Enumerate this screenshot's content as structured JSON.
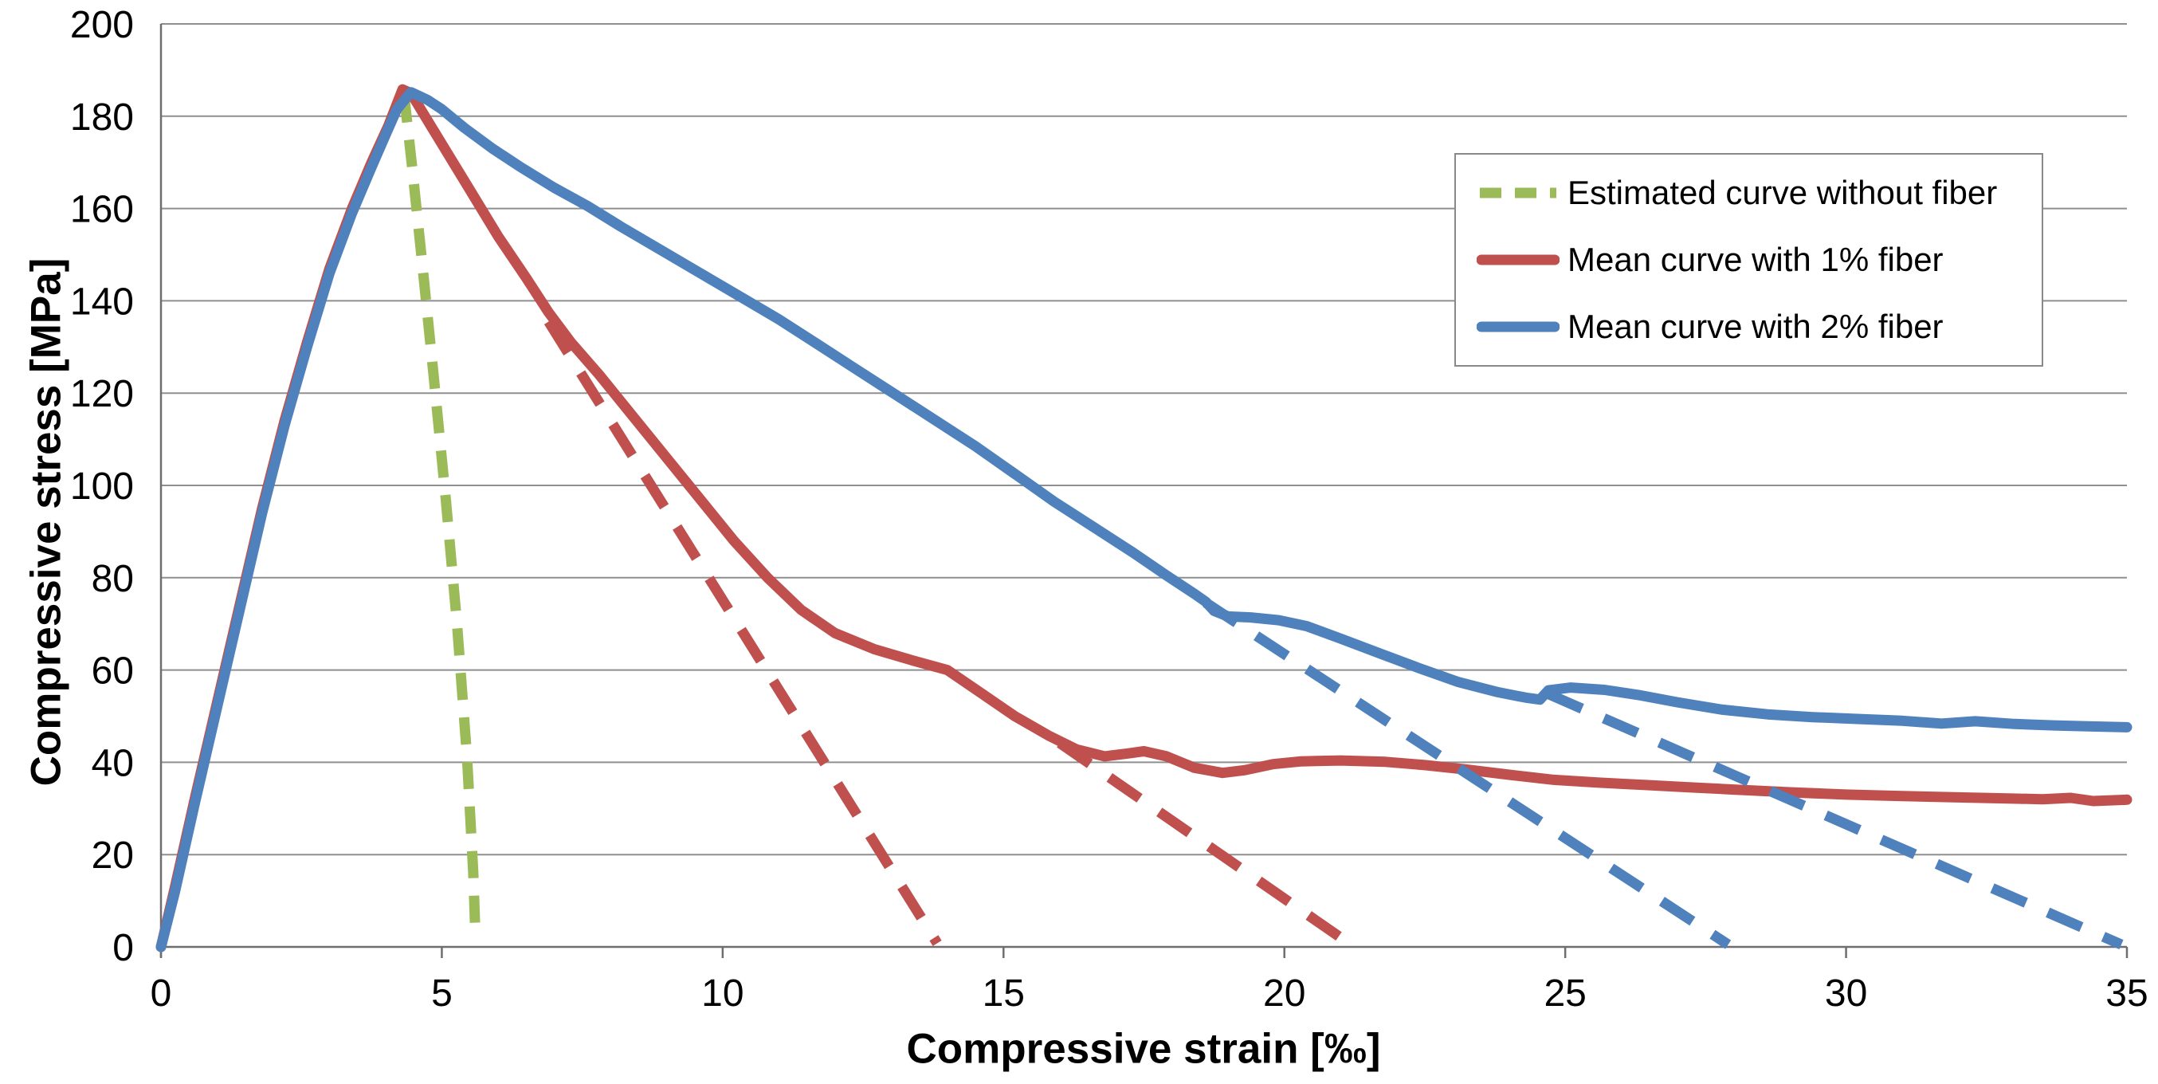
{
  "chart_data": {
    "type": "line",
    "title": "",
    "xlabel": "Compressive strain [‰]",
    "ylabel": "Compressive stress [MPa]",
    "xlim": [
      0,
      35
    ],
    "ylim": [
      0,
      200
    ],
    "xticks": [
      0,
      5,
      10,
      15,
      20,
      25,
      30,
      35
    ],
    "yticks": [
      0,
      20,
      40,
      60,
      80,
      100,
      120,
      140,
      160,
      180,
      200
    ],
    "grid": "horizontal",
    "legend_position": "upper-right",
    "legend": [
      {
        "label": "Estimated curve without fiber",
        "color": "#9BBB59",
        "dashed": true
      },
      {
        "label": "Mean curve with 1% fiber",
        "color": "#C0504D",
        "dashed": false
      },
      {
        "label": "Mean curve with 2% fiber",
        "color": "#4F81BD",
        "dashed": false
      }
    ],
    "series": [
      {
        "id": "estimated-no-fiber-dashed",
        "color": "#9BBB59",
        "dash": "34 22",
        "width": 13,
        "points": [
          [
            4.33,
            184.5
          ],
          [
            4.48,
            168
          ],
          [
            4.66,
            147
          ],
          [
            4.86,
            123
          ],
          [
            5.07,
            97
          ],
          [
            5.27,
            70
          ],
          [
            5.45,
            41
          ],
          [
            5.56,
            16
          ],
          [
            5.6,
            2
          ]
        ]
      },
      {
        "id": "red-unloading-branch-1",
        "color": "#C0504D",
        "dash": "46 30",
        "width": 13,
        "points": [
          [
            6.9,
            135.5
          ],
          [
            13.82,
            0.8
          ]
        ]
      },
      {
        "id": "red-unloading-branch-2",
        "color": "#C0504D",
        "dash": "46 30",
        "width": 13,
        "points": [
          [
            16.0,
            44.2
          ],
          [
            21.1,
            1.2
          ]
        ]
      },
      {
        "id": "mean-1pct-fiber",
        "color": "#C0504D",
        "dash": null,
        "width": 13,
        "points": [
          [
            0,
            0
          ],
          [
            0.25,
            13
          ],
          [
            0.6,
            32
          ],
          [
            1.0,
            53
          ],
          [
            1.4,
            74
          ],
          [
            1.8,
            95
          ],
          [
            2.2,
            114
          ],
          [
            2.6,
            131
          ],
          [
            3.0,
            147
          ],
          [
            3.4,
            160
          ],
          [
            3.75,
            170
          ],
          [
            4.05,
            178
          ],
          [
            4.3,
            185.8
          ],
          [
            4.45,
            185.0
          ],
          [
            4.6,
            182
          ],
          [
            4.8,
            178
          ],
          [
            5.1,
            172
          ],
          [
            5.5,
            164
          ],
          [
            6.0,
            154
          ],
          [
            6.5,
            145
          ],
          [
            6.9,
            137.5
          ],
          [
            7.3,
            131
          ],
          [
            7.8,
            124
          ],
          [
            8.4,
            115
          ],
          [
            9.0,
            106
          ],
          [
            9.6,
            97
          ],
          [
            10.2,
            88
          ],
          [
            10.8,
            80
          ],
          [
            11.4,
            73
          ],
          [
            12.0,
            68
          ],
          [
            12.7,
            64.5
          ],
          [
            13.4,
            62
          ],
          [
            14.0,
            60
          ],
          [
            14.6,
            55
          ],
          [
            15.2,
            50
          ],
          [
            15.8,
            45.8
          ],
          [
            16.3,
            42.8
          ],
          [
            16.8,
            41.3
          ],
          [
            17.2,
            41.9
          ],
          [
            17.5,
            42.4
          ],
          [
            17.9,
            41.3
          ],
          [
            18.4,
            38.8
          ],
          [
            18.9,
            37.7
          ],
          [
            19.3,
            38.3
          ],
          [
            19.8,
            39.6
          ],
          [
            20.3,
            40.2
          ],
          [
            21.0,
            40.4
          ],
          [
            21.8,
            40.1
          ],
          [
            22.5,
            39.4
          ],
          [
            23.2,
            38.5
          ],
          [
            24.0,
            37.3
          ],
          [
            24.8,
            36.2
          ],
          [
            25.6,
            35.6
          ],
          [
            26.4,
            35.1
          ],
          [
            27.2,
            34.6
          ],
          [
            28.0,
            34.1
          ],
          [
            29.0,
            33.5
          ],
          [
            30.0,
            33.0
          ],
          [
            31.0,
            32.7
          ],
          [
            32.0,
            32.4
          ],
          [
            32.8,
            32.2
          ],
          [
            33.5,
            32.0
          ],
          [
            34.0,
            32.3
          ],
          [
            34.4,
            31.6
          ],
          [
            35,
            31.9
          ]
        ]
      },
      {
        "id": "blue-unloading-branch-1",
        "color": "#4F81BD",
        "dash": "46 30",
        "width": 13,
        "points": [
          [
            18.6,
            74.6
          ],
          [
            27.9,
            0.5
          ]
        ]
      },
      {
        "id": "blue-unloading-branch-2",
        "color": "#4F81BD",
        "dash": "46 30",
        "width": 13,
        "points": [
          [
            24.7,
            54.8
          ],
          [
            34.9,
            0.5
          ]
        ]
      },
      {
        "id": "mean-2pct-fiber",
        "color": "#4F81BD",
        "dash": null,
        "width": 13,
        "points": [
          [
            0,
            0
          ],
          [
            0.25,
            12
          ],
          [
            0.6,
            31
          ],
          [
            1.0,
            52
          ],
          [
            1.4,
            73
          ],
          [
            1.8,
            94
          ],
          [
            2.2,
            113
          ],
          [
            2.6,
            130
          ],
          [
            3.0,
            146
          ],
          [
            3.4,
            159
          ],
          [
            3.75,
            169
          ],
          [
            4.0,
            176
          ],
          [
            4.2,
            181.5
          ],
          [
            4.45,
            185.2
          ],
          [
            4.75,
            183.5
          ],
          [
            5.0,
            181.5
          ],
          [
            5.4,
            177.5
          ],
          [
            5.9,
            173
          ],
          [
            6.4,
            169
          ],
          [
            7.0,
            164.5
          ],
          [
            7.6,
            160.5
          ],
          [
            8.2,
            156
          ],
          [
            8.9,
            151
          ],
          [
            9.6,
            146
          ],
          [
            10.3,
            141
          ],
          [
            11.0,
            136
          ],
          [
            11.7,
            130.5
          ],
          [
            12.4,
            125
          ],
          [
            13.1,
            119.5
          ],
          [
            13.8,
            114
          ],
          [
            14.5,
            108.5
          ],
          [
            15.2,
            102.5
          ],
          [
            15.9,
            96.5
          ],
          [
            16.6,
            91
          ],
          [
            17.3,
            85.5
          ],
          [
            17.9,
            80.5
          ],
          [
            18.4,
            76.5
          ],
          [
            18.6,
            74.8
          ],
          [
            18.75,
            72.8
          ],
          [
            19.0,
            71.6
          ],
          [
            19.4,
            71.4
          ],
          [
            19.9,
            70.8
          ],
          [
            20.4,
            69.5
          ],
          [
            21.0,
            66.8
          ],
          [
            21.7,
            63.6
          ],
          [
            22.4,
            60.4
          ],
          [
            23.1,
            57.4
          ],
          [
            23.8,
            55.2
          ],
          [
            24.3,
            54.0
          ],
          [
            24.55,
            53.6
          ],
          [
            24.7,
            55.6
          ],
          [
            25.1,
            56.2
          ],
          [
            25.7,
            55.7
          ],
          [
            26.3,
            54.6
          ],
          [
            27.0,
            53.0
          ],
          [
            27.8,
            51.4
          ],
          [
            28.6,
            50.4
          ],
          [
            29.4,
            49.8
          ],
          [
            30.2,
            49.4
          ],
          [
            31.0,
            49.0
          ],
          [
            31.7,
            48.4
          ],
          [
            32.3,
            48.9
          ],
          [
            33.0,
            48.3
          ],
          [
            33.7,
            48.0
          ],
          [
            34.3,
            47.8
          ],
          [
            35,
            47.6
          ]
        ]
      }
    ]
  },
  "style": {
    "gridline_color": "#8f8f8f",
    "axis_color": "#6e6e6e",
    "text_color": "#000000",
    "background": "#ffffff",
    "legend_border": "#898989"
  }
}
